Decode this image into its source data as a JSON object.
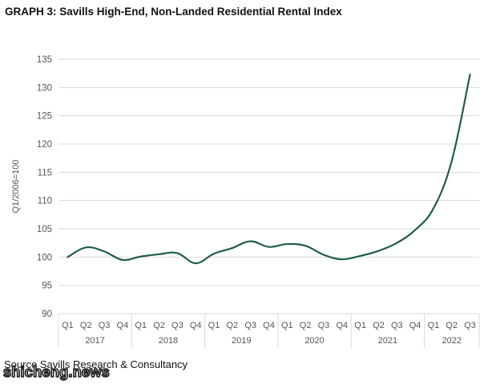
{
  "title": "GRAPH 3: Savills High-End, Non-Landed Residential Rental Index",
  "source": "Source Savills Research & Consultancy",
  "watermark": "shicheng.news",
  "colors": {
    "line": "#1f5e45",
    "grid": "#d9d9d9",
    "axis_text": "#555555"
  },
  "chart_data": {
    "type": "line",
    "ylabel": "Q1/2006=100",
    "ylim": [
      90,
      135
    ],
    "yticks": [
      90,
      95,
      100,
      105,
      110,
      115,
      120,
      125,
      130,
      135
    ],
    "grid": true,
    "categories": [
      "Q1",
      "Q2",
      "Q3",
      "Q4",
      "Q1",
      "Q2",
      "Q3",
      "Q4",
      "Q1",
      "Q2",
      "Q3",
      "Q4",
      "Q1",
      "Q2",
      "Q3",
      "Q4",
      "Q1",
      "Q2",
      "Q3",
      "Q4",
      "Q1",
      "Q2",
      "Q3"
    ],
    "years": [
      {
        "label": "2017",
        "quarters": 4
      },
      {
        "label": "2018",
        "quarters": 4
      },
      {
        "label": "2019",
        "quarters": 4
      },
      {
        "label": "2020",
        "quarters": 4
      },
      {
        "label": "2021",
        "quarters": 4
      },
      {
        "label": "2022",
        "quarters": 3
      }
    ],
    "series": [
      {
        "values": [
          100.0,
          101.7,
          101.0,
          99.5,
          100.1,
          100.5,
          100.7,
          98.9,
          100.6,
          101.6,
          102.8,
          101.8,
          102.3,
          102.0,
          100.4,
          99.6,
          100.2,
          101.1,
          102.5,
          104.8,
          108.6,
          117.0,
          132.3
        ]
      }
    ]
  }
}
